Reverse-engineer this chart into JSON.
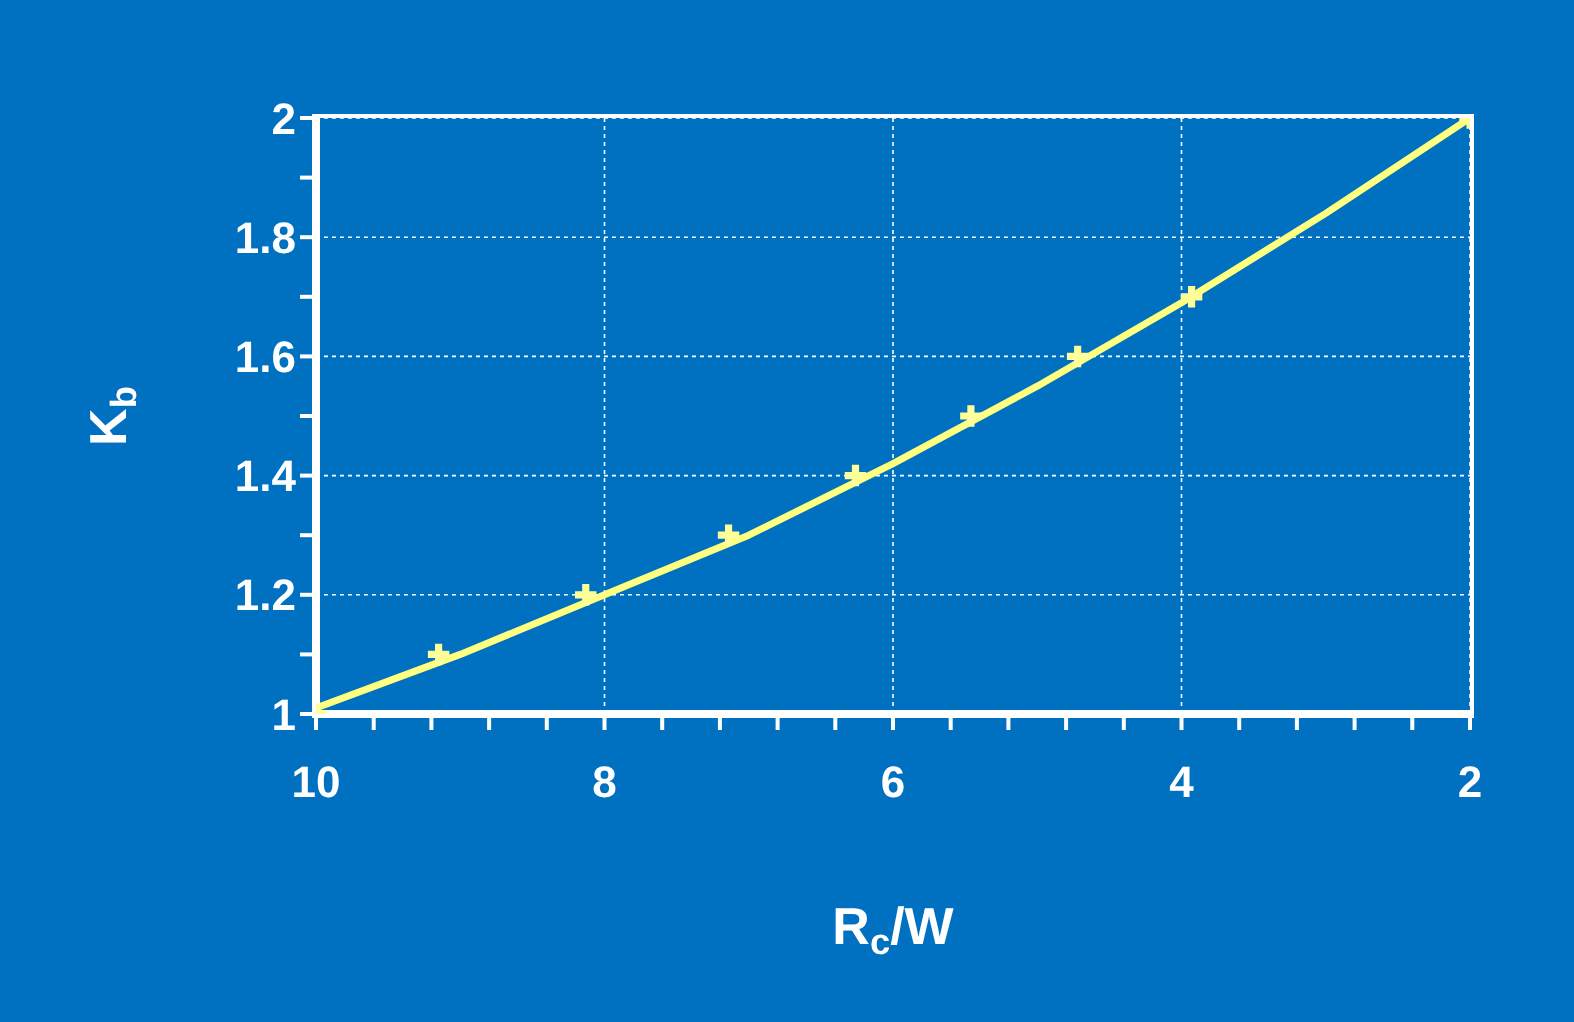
{
  "chart_data": {
    "type": "line",
    "xlabel": "R$_{c}$/W",
    "ylabel": "K$_{b}$",
    "xlim": [
      10,
      2
    ],
    "ylim": [
      1,
      2
    ],
    "xticks": [
      10,
      {
        "value": 9.6,
        "label": null
      },
      {
        "value": 9.2,
        "label": null
      },
      {
        "value": 8.8,
        "label": null
      },
      {
        "value": 8.4,
        "label": null
      },
      8,
      {
        "value": 7.6,
        "label": null
      },
      {
        "value": 7.2,
        "label": null
      },
      {
        "value": 6.8,
        "label": null
      },
      {
        "value": 6.4,
        "label": null
      },
      6,
      {
        "value": 5.6,
        "label": null
      },
      {
        "value": 5.2,
        "label": null
      },
      {
        "value": 4.8,
        "label": null
      },
      {
        "value": 4.4,
        "label": null
      },
      4,
      {
        "value": 3.6,
        "label": null
      },
      {
        "value": 3.2,
        "label": null
      },
      {
        "value": 2.8,
        "label": null
      },
      {
        "value": 2.4,
        "label": null
      },
      2
    ],
    "yticks": [
      1,
      {
        "value": 1.1,
        "label": null
      },
      1.2,
      {
        "value": 1.3,
        "label": null
      },
      1.4,
      {
        "value": 1.5,
        "label": null
      },
      1.6,
      {
        "value": 1.7,
        "label": null
      },
      1.8,
      {
        "value": 1.9,
        "label": null
      },
      2
    ],
    "grid": true,
    "line_style": "solid",
    "series": [
      {
        "color": "#ffff80",
        "marker": "none",
        "x": [
          10,
          9,
          8,
          7,
          6,
          5,
          4,
          3,
          2
        ],
        "values": [
          1.01,
          1.1,
          1.2,
          1.3,
          1.42,
          1.55,
          1.69,
          1.84,
          2.0
        ]
      },
      {
        "type": "scatter",
        "color": "#ffff99",
        "marker": "cross",
        "x": [
          10,
          9.15,
          8.13,
          7.14,
          6.26,
          5.46,
          4.72,
          3.93,
          2
        ],
        "values": [
          1.0,
          1.1,
          1.2,
          1.3,
          1.4,
          1.5,
          1.6,
          1.7,
          2.0
        ]
      }
    ]
  }
}
